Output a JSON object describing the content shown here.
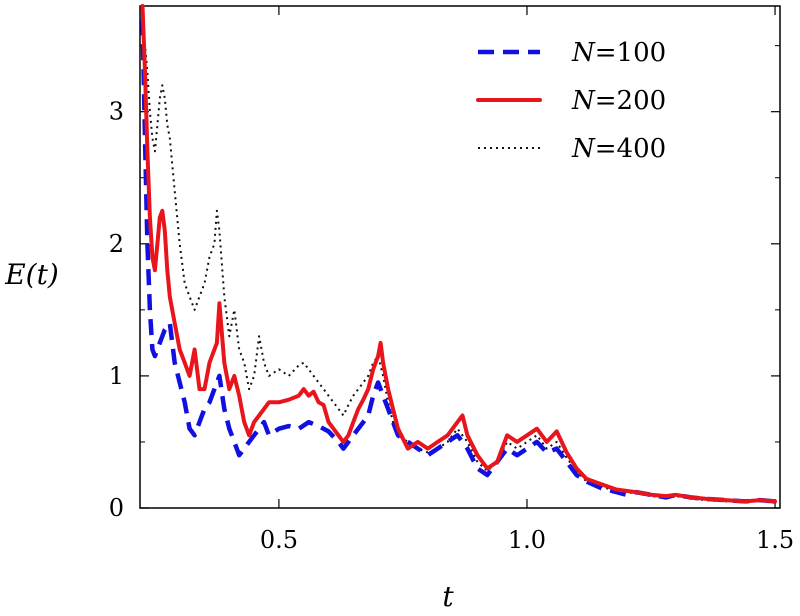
{
  "chart_data": {
    "type": "line",
    "title": "",
    "xlabel": "t",
    "ylabel": "E(t)",
    "xlim": [
      0.22,
      1.51
    ],
    "ylim": [
      0,
      3.8
    ],
    "xticks": [
      {
        "value": 0.5,
        "label": "0.5"
      },
      {
        "value": 1.0,
        "label": "1.0"
      },
      {
        "value": 1.5,
        "label": "1.5"
      }
    ],
    "yticks": [
      {
        "value": 0,
        "label": "0"
      },
      {
        "value": 1,
        "label": "1"
      },
      {
        "value": 2,
        "label": "2"
      },
      {
        "value": 3,
        "label": "3"
      }
    ],
    "grid": false,
    "legend_position": "top-right",
    "series": [
      {
        "name": "N=100",
        "label_prefix": "N",
        "label_value": "=100",
        "color": "#1010e0",
        "style": "dashed",
        "x": [
          0.225,
          0.23,
          0.235,
          0.24,
          0.245,
          0.25,
          0.26,
          0.27,
          0.28,
          0.29,
          0.3,
          0.31,
          0.32,
          0.33,
          0.34,
          0.35,
          0.36,
          0.37,
          0.38,
          0.39,
          0.4,
          0.41,
          0.42,
          0.43,
          0.44,
          0.45,
          0.46,
          0.47,
          0.48,
          0.5,
          0.52,
          0.54,
          0.56,
          0.58,
          0.6,
          0.62,
          0.63,
          0.64,
          0.65,
          0.66,
          0.67,
          0.68,
          0.69,
          0.7,
          0.71,
          0.72,
          0.73,
          0.74,
          0.76,
          0.78,
          0.8,
          0.82,
          0.84,
          0.86,
          0.88,
          0.9,
          0.92,
          0.94,
          0.96,
          0.98,
          1.0,
          1.02,
          1.04,
          1.06,
          1.08,
          1.1,
          1.12,
          1.15,
          1.18,
          1.2,
          1.22,
          1.25,
          1.28,
          1.3,
          1.33,
          1.36,
          1.4,
          1.44,
          1.47,
          1.5
        ],
        "y": [
          3.7,
          2.8,
          2.0,
          1.5,
          1.2,
          1.15,
          1.25,
          1.35,
          1.4,
          1.1,
          0.95,
          0.8,
          0.6,
          0.55,
          0.65,
          0.75,
          0.8,
          0.9,
          1.0,
          0.75,
          0.6,
          0.5,
          0.4,
          0.45,
          0.5,
          0.55,
          0.6,
          0.65,
          0.55,
          0.6,
          0.62,
          0.6,
          0.65,
          0.62,
          0.58,
          0.5,
          0.45,
          0.5,
          0.55,
          0.6,
          0.65,
          0.7,
          0.85,
          0.95,
          0.85,
          0.75,
          0.65,
          0.55,
          0.5,
          0.45,
          0.4,
          0.45,
          0.5,
          0.55,
          0.45,
          0.3,
          0.25,
          0.35,
          0.45,
          0.4,
          0.45,
          0.5,
          0.42,
          0.45,
          0.35,
          0.25,
          0.2,
          0.15,
          0.12,
          0.1,
          0.12,
          0.1,
          0.08,
          0.1,
          0.08,
          0.07,
          0.06,
          0.05,
          0.06,
          0.05
        ]
      },
      {
        "name": "N=200",
        "label_prefix": "N",
        "label_value": "=200",
        "color": "#e8161c",
        "style": "solid",
        "x": [
          0.225,
          0.23,
          0.235,
          0.24,
          0.245,
          0.25,
          0.255,
          0.26,
          0.265,
          0.27,
          0.275,
          0.28,
          0.29,
          0.3,
          0.31,
          0.32,
          0.33,
          0.34,
          0.35,
          0.36,
          0.37,
          0.375,
          0.38,
          0.39,
          0.4,
          0.41,
          0.42,
          0.43,
          0.44,
          0.45,
          0.46,
          0.47,
          0.48,
          0.5,
          0.52,
          0.54,
          0.55,
          0.56,
          0.57,
          0.58,
          0.59,
          0.6,
          0.61,
          0.62,
          0.63,
          0.64,
          0.65,
          0.66,
          0.67,
          0.68,
          0.69,
          0.7,
          0.705,
          0.71,
          0.72,
          0.73,
          0.74,
          0.76,
          0.78,
          0.8,
          0.82,
          0.84,
          0.86,
          0.87,
          0.88,
          0.9,
          0.92,
          0.94,
          0.96,
          0.98,
          1.0,
          1.02,
          1.04,
          1.06,
          1.08,
          1.1,
          1.12,
          1.15,
          1.18,
          1.2,
          1.22,
          1.25,
          1.28,
          1.3,
          1.33,
          1.36,
          1.4,
          1.44,
          1.47,
          1.5
        ],
        "y": [
          3.8,
          3.3,
          2.7,
          2.2,
          1.9,
          1.8,
          2.0,
          2.2,
          2.25,
          2.1,
          1.8,
          1.6,
          1.4,
          1.2,
          1.1,
          1.0,
          1.2,
          0.9,
          0.9,
          1.1,
          1.2,
          1.25,
          1.55,
          1.1,
          0.9,
          1.0,
          0.85,
          0.65,
          0.55,
          0.65,
          0.7,
          0.75,
          0.8,
          0.8,
          0.82,
          0.85,
          0.9,
          0.85,
          0.88,
          0.8,
          0.78,
          0.65,
          0.6,
          0.55,
          0.5,
          0.55,
          0.65,
          0.75,
          0.82,
          0.9,
          1.05,
          1.15,
          1.25,
          1.1,
          0.9,
          0.75,
          0.6,
          0.45,
          0.5,
          0.45,
          0.5,
          0.55,
          0.65,
          0.7,
          0.55,
          0.4,
          0.3,
          0.35,
          0.55,
          0.5,
          0.55,
          0.6,
          0.5,
          0.58,
          0.42,
          0.3,
          0.22,
          0.18,
          0.14,
          0.13,
          0.12,
          0.1,
          0.09,
          0.1,
          0.08,
          0.07,
          0.06,
          0.05,
          0.06,
          0.05
        ]
      },
      {
        "name": "N=400",
        "label_prefix": "N",
        "label_value": "=400",
        "color": "#111111",
        "style": "dotted",
        "x": [
          0.225,
          0.23,
          0.235,
          0.24,
          0.245,
          0.25,
          0.255,
          0.26,
          0.265,
          0.27,
          0.275,
          0.28,
          0.29,
          0.3,
          0.31,
          0.32,
          0.33,
          0.34,
          0.35,
          0.36,
          0.37,
          0.375,
          0.38,
          0.39,
          0.4,
          0.41,
          0.42,
          0.43,
          0.44,
          0.45,
          0.46,
          0.47,
          0.48,
          0.5,
          0.52,
          0.54,
          0.55,
          0.56,
          0.57,
          0.58,
          0.59,
          0.6,
          0.61,
          0.62,
          0.63,
          0.64,
          0.65,
          0.66,
          0.67,
          0.68,
          0.69,
          0.7,
          0.71,
          0.72,
          0.73,
          0.74,
          0.76,
          0.78,
          0.8,
          0.82,
          0.84,
          0.86,
          0.88,
          0.9,
          0.92,
          0.94,
          0.96,
          0.98,
          1.0,
          1.02,
          1.04,
          1.06,
          1.08,
          1.1,
          1.12,
          1.15,
          1.18,
          1.2,
          1.22,
          1.25,
          1.28,
          1.3,
          1.33,
          1.36,
          1.4,
          1.44,
          1.47,
          1.5
        ],
        "y": [
          3.7,
          3.5,
          3.3,
          3.0,
          2.8,
          2.7,
          2.9,
          3.1,
          3.2,
          3.1,
          2.9,
          2.8,
          2.4,
          2.0,
          1.7,
          1.6,
          1.5,
          1.6,
          1.7,
          1.9,
          2.0,
          2.25,
          2.1,
          1.6,
          1.3,
          1.5,
          1.2,
          1.1,
          0.9,
          1.0,
          1.3,
          1.1,
          1.0,
          1.05,
          1.0,
          1.08,
          1.1,
          1.05,
          1.0,
          0.95,
          0.9,
          0.85,
          0.8,
          0.75,
          0.7,
          0.78,
          0.85,
          0.9,
          0.95,
          1.0,
          1.1,
          1.15,
          1.0,
          0.8,
          0.65,
          0.55,
          0.5,
          0.45,
          0.42,
          0.45,
          0.5,
          0.6,
          0.5,
          0.35,
          0.28,
          0.35,
          0.5,
          0.45,
          0.5,
          0.55,
          0.45,
          0.5,
          0.38,
          0.28,
          0.2,
          0.16,
          0.13,
          0.12,
          0.11,
          0.09,
          0.08,
          0.09,
          0.07,
          0.06,
          0.05,
          0.05,
          0.05,
          0.04
        ]
      }
    ]
  }
}
